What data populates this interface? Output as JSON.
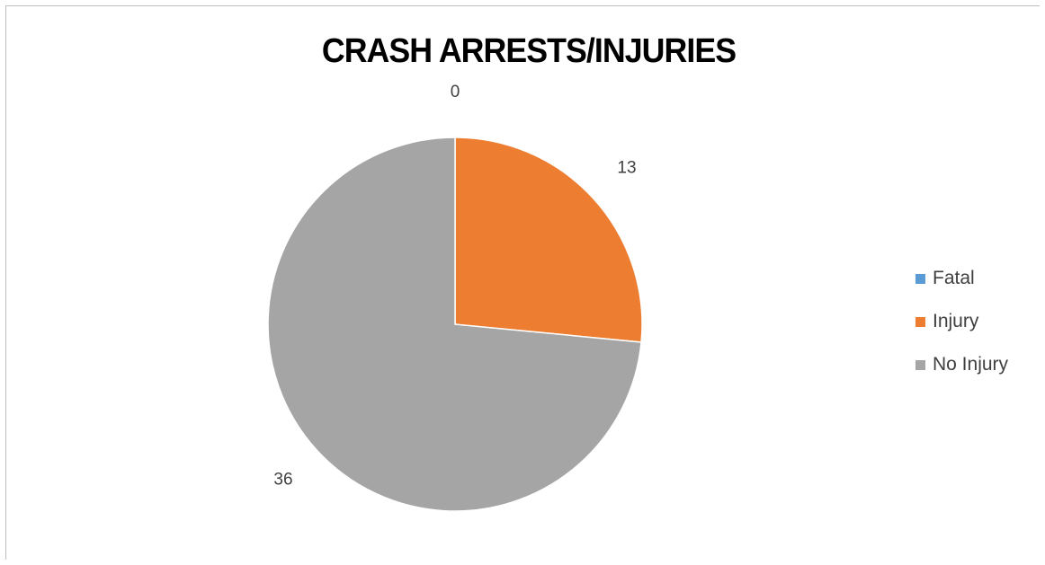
{
  "chart_data": {
    "type": "pie",
    "title": "CRASH ARRESTS/INJURIES",
    "categories": [
      "Fatal",
      "Injury",
      "No Injury"
    ],
    "values": [
      0,
      13,
      36
    ],
    "data_labels": [
      "0",
      "13",
      "36"
    ],
    "colors": [
      "#5b9bd5",
      "#ed7d31",
      "#a5a5a5"
    ],
    "start_angle_deg": 0,
    "direction": "clockwise",
    "legend_position": "right"
  }
}
